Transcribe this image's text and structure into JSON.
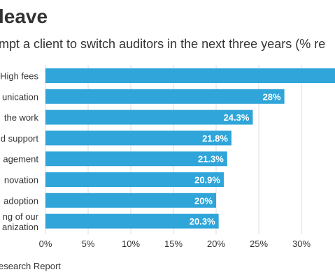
{
  "header": {
    "title": "leave",
    "subtitle": "mpt a client to switch auditors in the next three years (% re"
  },
  "footer": {
    "source": "esearch Report"
  },
  "chart_data": {
    "type": "bar",
    "orientation": "horizontal",
    "title": "leave",
    "subtitle": "mpt a client to switch auditors in the next three years (% re",
    "categories": [
      [
        "High fees"
      ],
      [
        "unication"
      ],
      [
        "the work"
      ],
      [
        "d support"
      ],
      [
        "agement"
      ],
      [
        "novation"
      ],
      [
        "adoption"
      ],
      [
        "ng of our",
        "anization"
      ]
    ],
    "values": [
      36,
      28,
      24.3,
      21.8,
      21.3,
      20.9,
      20,
      20.3
    ],
    "value_labels": [
      "",
      "28%",
      "24.3%",
      "21.8%",
      "21.3%",
      "20.9%",
      "20%",
      "20.3%"
    ],
    "x_ticks": [
      "0%",
      "5%",
      "10%",
      "15%",
      "20%",
      "25%",
      "30%",
      "3"
    ],
    "xlim": [
      0,
      35
    ],
    "grid": true,
    "colors": {
      "bar": "#2fa5d9",
      "label_text": "#ffffff",
      "text": "#333333",
      "grid": "#dddddd"
    }
  }
}
